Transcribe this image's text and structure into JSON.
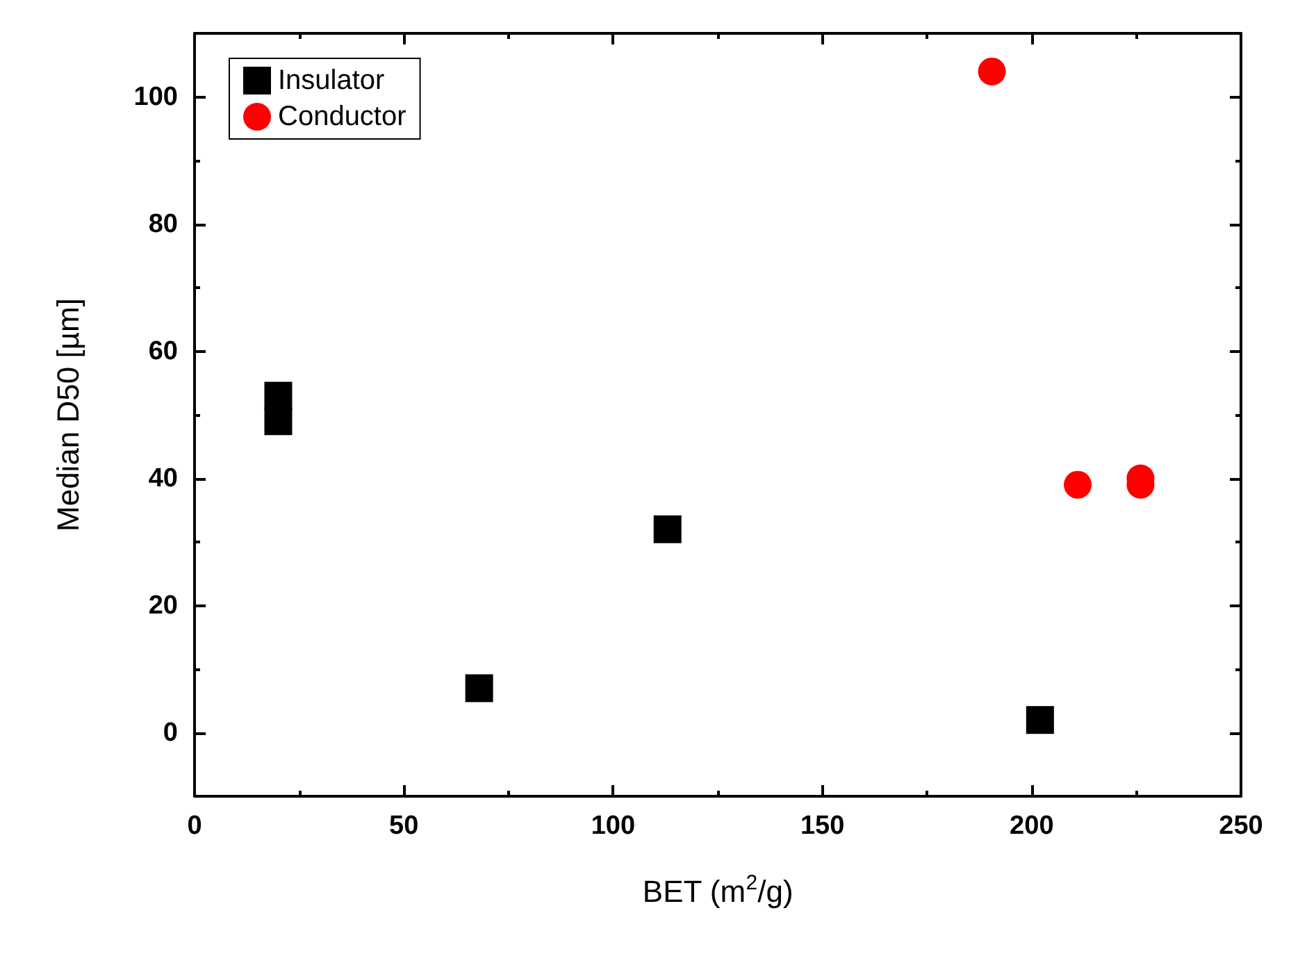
{
  "chart_data": {
    "type": "scatter",
    "xlabel": "BET (m$^{2}$/g)",
    "ylabel": "Median D50 [µm]",
    "xlim": [
      0,
      250
    ],
    "xticks": [
      0,
      50,
      100,
      150,
      200,
      250
    ],
    "ylim": [
      -10,
      110
    ],
    "yticks": [
      0,
      20,
      40,
      60,
      80,
      100
    ],
    "legend": "top left",
    "grid": false,
    "series": [
      {
        "name": "Insulator",
        "color": "#000000",
        "marker": "square",
        "x": [
          20,
          20,
          68,
          113,
          202
        ],
        "values": [
          53,
          49,
          7,
          32,
          2
        ]
      },
      {
        "name": "Conductor",
        "color": "#ff0000",
        "marker": "circle",
        "x": [
          190.5,
          211,
          226,
          226
        ],
        "values": [
          104,
          39,
          40,
          39
        ]
      }
    ]
  }
}
